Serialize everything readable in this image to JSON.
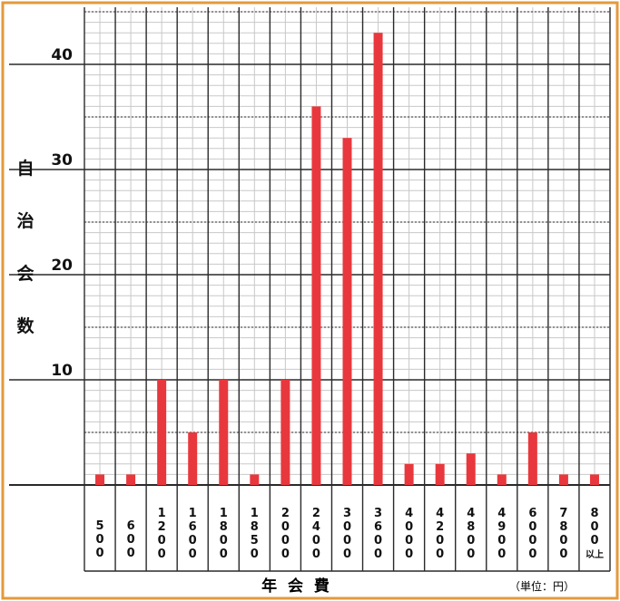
{
  "chart_data": {
    "type": "bar",
    "title": "",
    "ylabel": "自治会数",
    "ylabel_chars": [
      "自",
      "治",
      "会",
      "数"
    ],
    "xlabel": "年 会 費",
    "unit_note": "（単位：円）",
    "ylim": [
      0,
      41
    ],
    "yticks": [
      10,
      20,
      30,
      40
    ],
    "categories": [
      "500",
      "600",
      "1200",
      "1600",
      "1800",
      "1850",
      "2000",
      "2400",
      "3000",
      "3600",
      "4000",
      "4200",
      "4800",
      "4900",
      "6000",
      "7800",
      "800以上"
    ],
    "category_chars": [
      [
        "5",
        "0",
        "0"
      ],
      [
        "6",
        "0",
        "0"
      ],
      [
        "1",
        "2",
        "0",
        "0"
      ],
      [
        "1",
        "6",
        "0",
        "0"
      ],
      [
        "1",
        "8",
        "0",
        "0"
      ],
      [
        "1",
        "8",
        "5",
        "0"
      ],
      [
        "2",
        "0",
        "0",
        "0"
      ],
      [
        "2",
        "4",
        "0",
        "0"
      ],
      [
        "3",
        "0",
        "0",
        "0"
      ],
      [
        "3",
        "6",
        "0",
        "0"
      ],
      [
        "4",
        "0",
        "0",
        "0"
      ],
      [
        "4",
        "2",
        "0",
        "0"
      ],
      [
        "4",
        "8",
        "0",
        "0"
      ],
      [
        "4",
        "9",
        "0",
        "0"
      ],
      [
        "6",
        "0",
        "0",
        "0"
      ],
      [
        "7",
        "8",
        "0",
        "0"
      ],
      [
        "8",
        "0",
        "0",
        "以上"
      ]
    ],
    "values": [
      1,
      1,
      10,
      5,
      10,
      1,
      10,
      36,
      33,
      43,
      2,
      2,
      3,
      1,
      5,
      1,
      1
    ],
    "grid": true,
    "colors": {
      "bar": "#e8383d",
      "frame": "#e39a3c",
      "grid_major": "#2a2a2a",
      "grid_minor": "#c8c8c8",
      "text": "#111111"
    }
  }
}
